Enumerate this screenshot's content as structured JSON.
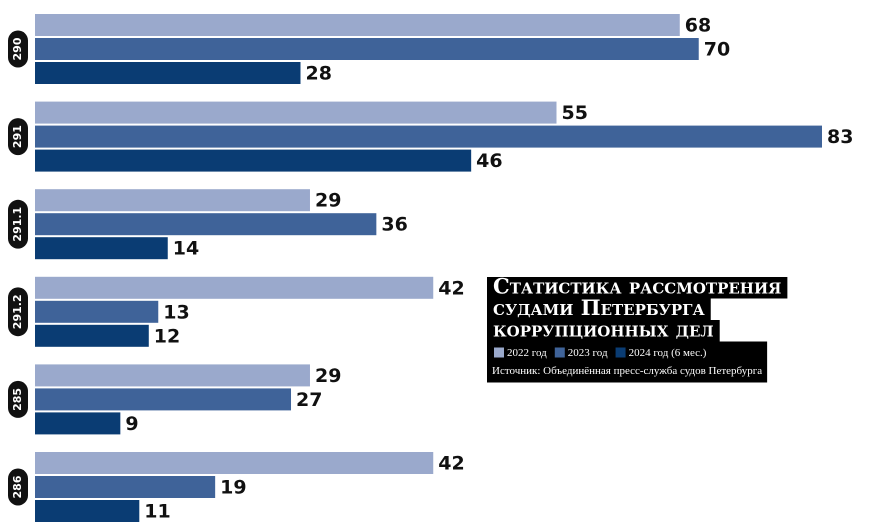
{
  "chart_data": {
    "type": "bar",
    "orientation": "horizontal",
    "title": [
      "Статистика рассмотрения",
      "судами Петербурга",
      "коррупционных дел"
    ],
    "source": "Источник: Объединённая пресс-служба судов Петербурга",
    "categories": [
      "290",
      "291",
      "291.1",
      "291.2",
      "285",
      "286"
    ],
    "series": [
      {
        "name": "2022 год",
        "color": "#9aa9cc",
        "values": [
          68,
          55,
          29,
          42,
          29,
          42
        ]
      },
      {
        "name": "2023 год",
        "color": "#3f6399",
        "values": [
          70,
          83,
          36,
          13,
          27,
          19
        ]
      },
      {
        "name": "2024 год (6 мес.)",
        "color": "#0a3c73",
        "values": [
          28,
          46,
          14,
          12,
          9,
          11
        ]
      }
    ]
  }
}
